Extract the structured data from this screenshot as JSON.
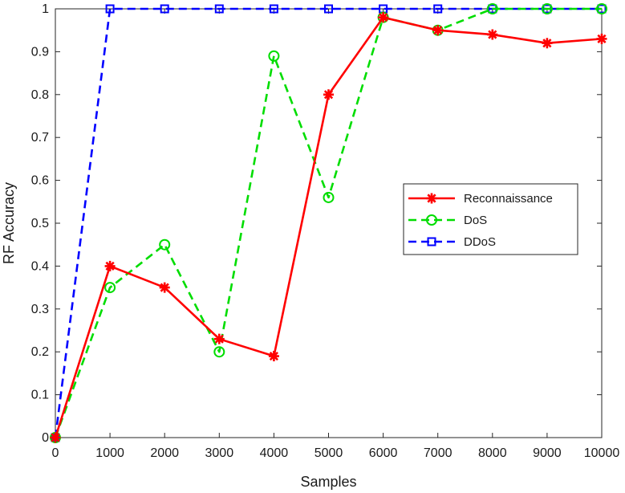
{
  "chart_data": {
    "type": "line",
    "title": "",
    "xlabel": "Samples",
    "ylabel": "RF Accuracy",
    "x": [
      0,
      1000,
      2000,
      3000,
      4000,
      5000,
      6000,
      7000,
      8000,
      9000,
      10000
    ],
    "x_tick_labels": [
      "0",
      "1000",
      "2000",
      "3000",
      "4000",
      "5000",
      "6000",
      "7000",
      "8000",
      "9000",
      "10000"
    ],
    "y_ticks": [
      0,
      0.1,
      0.2,
      0.3,
      0.4,
      0.5,
      0.6,
      0.7,
      0.8,
      0.9,
      1
    ],
    "y_tick_labels": [
      "0",
      "0.1",
      "0.2",
      "0.3",
      "0.4",
      "0.5",
      "0.6",
      "0.7",
      "0.8",
      "0.9",
      "1"
    ],
    "xlim": [
      0,
      10000
    ],
    "ylim": [
      0,
      1
    ],
    "grid": false,
    "legend_position": "right",
    "series": [
      {
        "name": "Reconnaissance",
        "color": "#ff0000",
        "line_style": "solid",
        "marker": "star",
        "values": [
          0,
          0.4,
          0.35,
          0.23,
          0.19,
          0.8,
          0.98,
          0.95,
          0.94,
          0.92,
          0.93
        ]
      },
      {
        "name": "DoS",
        "color": "#00dd00",
        "line_style": "dashed",
        "marker": "circle",
        "values": [
          0,
          0.35,
          0.45,
          0.2,
          0.89,
          0.56,
          0.98,
          0.95,
          1.0,
          1.0,
          1.0
        ]
      },
      {
        "name": "DDoS",
        "color": "#0000ff",
        "line_style": "dashed",
        "marker": "square",
        "values": [
          0,
          1,
          1,
          1,
          1,
          1,
          1,
          1,
          1,
          1,
          1
        ]
      }
    ]
  }
}
